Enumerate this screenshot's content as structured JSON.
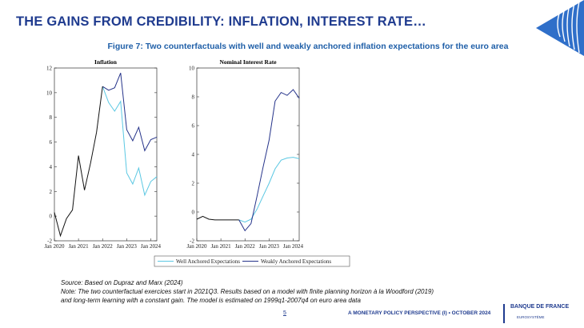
{
  "slide": {
    "title": "THE GAINS FROM CREDIBILITY: INFLATION, INTEREST RATE…",
    "figure_title": "Figure 7: Two counterfactuals with well and weakly anchored inflation expectations for the euro area"
  },
  "colors": {
    "brand": "#1f3b8f",
    "well": "#5bc8e3",
    "weak": "#25338a",
    "common": "#111111"
  },
  "chart_data": [
    {
      "type": "line",
      "title": "Inflation",
      "x_tick_labels": [
        "Jan 2020",
        "Jan 2021",
        "Jan 2022",
        "Jan 2023",
        "Jan 2024"
      ],
      "xlim": [
        2020.0,
        2024.25
      ],
      "ylim": [
        -2,
        12
      ],
      "y_ticks": [
        "-2",
        "0",
        "2",
        "4",
        "6",
        "8",
        "10",
        "12"
      ],
      "grid": false,
      "common": {
        "name": "",
        "x": [
          2020.0,
          2020.25,
          2020.5,
          2020.75,
          2021.0,
          2021.25,
          2021.5,
          2021.75,
          2022.0
        ],
        "values": [
          0.3,
          -1.6,
          -0.2,
          0.5,
          4.9,
          2.1,
          4.3,
          6.8,
          10.5
        ]
      },
      "series": [
        {
          "name": "Weakly Anchored Expectations",
          "x": [
            2022.0,
            2022.25,
            2022.5,
            2022.75,
            2023.0,
            2023.25,
            2023.5,
            2023.75,
            2024.0,
            2024.25
          ],
          "values": [
            10.5,
            10.2,
            10.4,
            11.6,
            7.0,
            6.1,
            7.2,
            5.3,
            6.2,
            6.4
          ]
        },
        {
          "name": "Well Anchored Expectations",
          "x": [
            2022.0,
            2022.25,
            2022.5,
            2022.75,
            2023.0,
            2023.25,
            2023.5,
            2023.75,
            2024.0,
            2024.25
          ],
          "values": [
            10.5,
            9.2,
            8.5,
            9.3,
            3.5,
            2.6,
            3.9,
            1.7,
            2.8,
            3.2
          ]
        }
      ]
    },
    {
      "type": "line",
      "title": "Nominal Interest Rate",
      "x_tick_labels": [
        "Jan 2020",
        "Jan 2021",
        "Jan 2022",
        "Jan 2023",
        "Jan 2024"
      ],
      "xlim": [
        2020.0,
        2024.25
      ],
      "ylim": [
        -2,
        10
      ],
      "y_ticks": [
        "-2",
        "0",
        "2",
        "4",
        "6",
        "8",
        "10"
      ],
      "grid": false,
      "common": {
        "name": "",
        "x": [
          2020.0,
          2020.25,
          2020.5,
          2020.75,
          2021.0,
          2021.25,
          2021.5,
          2021.75
        ],
        "values": [
          -0.5,
          -0.3,
          -0.5,
          -0.55,
          -0.55,
          -0.55,
          -0.55,
          -0.55
        ]
      },
      "series": [
        {
          "name": "Weakly Anchored Expectations",
          "x": [
            2021.75,
            2022.0,
            2022.25,
            2022.5,
            2022.75,
            2023.0,
            2023.25,
            2023.5,
            2023.75,
            2024.0,
            2024.25
          ],
          "values": [
            -0.55,
            -1.3,
            -0.8,
            1.1,
            3.1,
            5.0,
            7.7,
            8.3,
            8.1,
            8.5,
            7.9
          ]
        },
        {
          "name": "Well Anchored Expectations",
          "x": [
            2021.75,
            2022.0,
            2022.25,
            2022.5,
            2022.75,
            2023.0,
            2023.25,
            2023.5,
            2023.75,
            2024.0,
            2024.25
          ],
          "values": [
            -0.55,
            -0.7,
            -0.5,
            0.2,
            1.1,
            2.0,
            3.0,
            3.6,
            3.75,
            3.8,
            3.7
          ]
        }
      ]
    }
  ],
  "legend": {
    "well_label": "Well Anchored Expectations",
    "weak_label": "Weakly Anchored Expectations"
  },
  "notes": {
    "source": "Source: Based on Dupraz and Marx (2024)",
    "note_line1": "Note: The two counterfactual exercices start in 2021Q3. Results based on a model with finite planning horizon à la Woodford (2019)",
    "note_line2": "and long-term learning  with a constant gain. The model is estimated on 1999q1-2007q4 on euro area data"
  },
  "footer": {
    "page_number": "5",
    "text": "A MONETARY POLICY PERSPECTIVE (I) • OCTOBER 2024",
    "logo_name": "BANQUE DE FRANCE",
    "logo_sub": "EUROSYSTÈME"
  }
}
